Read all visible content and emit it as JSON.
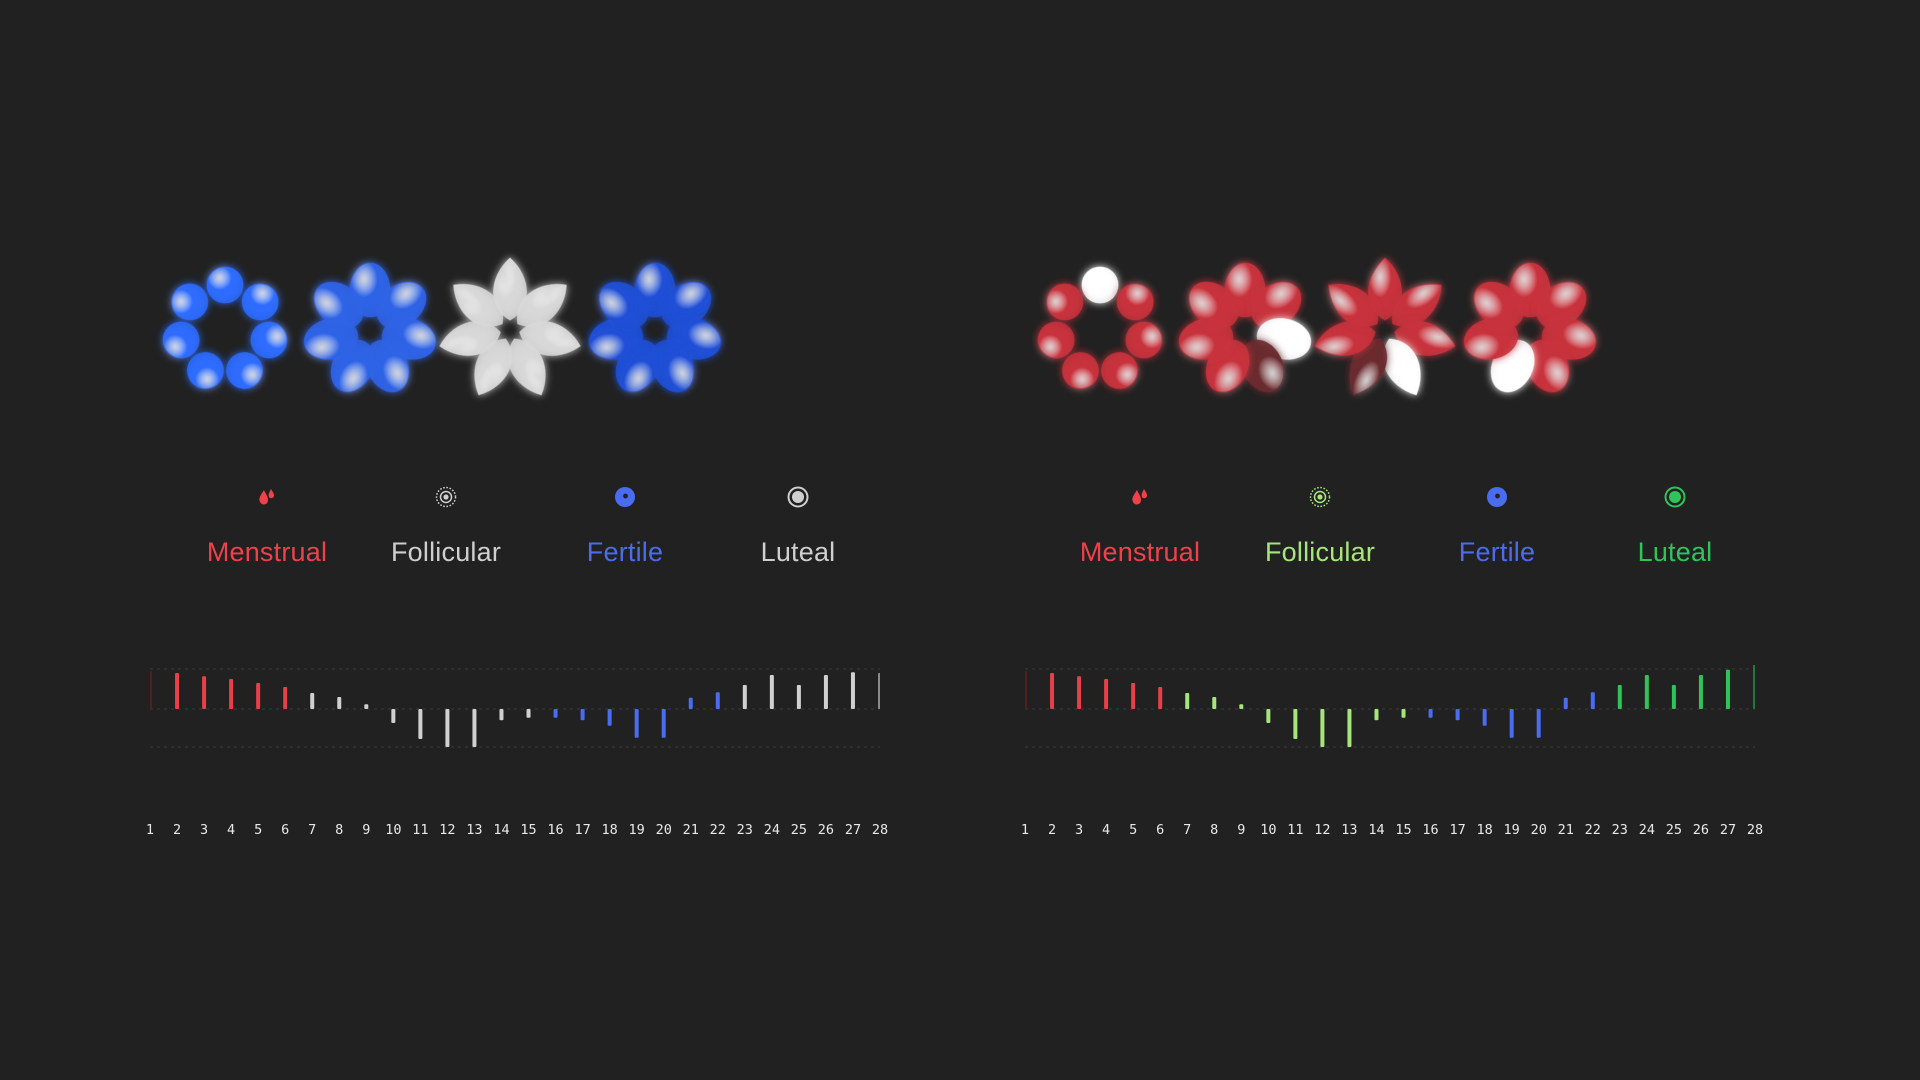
{
  "panels": [
    {
      "id": "left",
      "flowers": [
        {
          "phase": "menstrual",
          "shape": "round",
          "colors": [
            "#2d6cff",
            "#2d6cff",
            "#2d6cff",
            "#2d6cff",
            "#2d6cff",
            "#2d6cff",
            "#2d6cff"
          ]
        },
        {
          "phase": "follicular",
          "shape": "oval",
          "colors": [
            "#2f63e6",
            "#2f63e6",
            "#2f63e6",
            "#2f63e6",
            "#2f63e6",
            "#2f63e6",
            "#2f63e6"
          ]
        },
        {
          "phase": "fertile",
          "shape": "pointed",
          "colors": [
            "#d8d8d8",
            "#d8d8d8",
            "#d8d8d8",
            "#d8d8d8",
            "#d8d8d8",
            "#d8d8d8",
            "#d8d8d8"
          ]
        },
        {
          "phase": "luteal",
          "shape": "oval",
          "colors": [
            "#1f4fd6",
            "#1f4fd6",
            "#1f4fd6",
            "#1f4fd6",
            "#1f4fd6",
            "#1f4fd6",
            "#1f4fd6"
          ]
        }
      ],
      "phases": [
        {
          "label": "Menstrual",
          "color": "#f0414b",
          "icon": "blood-drop-icon"
        },
        {
          "label": "Follicular",
          "color": "#cfcfcf",
          "icon": "dotted-ring-icon"
        },
        {
          "label": "Fertile",
          "color": "#4a6cf0",
          "icon": "filled-dot-icon"
        },
        {
          "label": "Luteal",
          "color": "#cfcfcf",
          "icon": "ring-dot-icon"
        }
      ],
      "days": [
        {
          "day": "1",
          "value": 0.95,
          "color": "#5a1a1e"
        },
        {
          "day": "2",
          "value": 0.9,
          "color": "#e8404a"
        },
        {
          "day": "3",
          "value": 0.82,
          "color": "#e8404a"
        },
        {
          "day": "4",
          "value": 0.75,
          "color": "#e8404a"
        },
        {
          "day": "5",
          "value": 0.65,
          "color": "#e8404a"
        },
        {
          "day": "6",
          "value": 0.55,
          "color": "#e8404a"
        },
        {
          "day": "7",
          "value": 0.4,
          "color": "#d0d0d0"
        },
        {
          "day": "8",
          "value": 0.3,
          "color": "#d0d0d0"
        },
        {
          "day": "9",
          "value": 0.12,
          "color": "#d0d0d0"
        },
        {
          "day": "10",
          "value": -0.35,
          "color": "#d0d0d0"
        },
        {
          "day": "11",
          "value": -0.75,
          "color": "#d0d0d0"
        },
        {
          "day": "12",
          "value": -0.95,
          "color": "#d0d0d0"
        },
        {
          "day": "13",
          "value": -0.95,
          "color": "#d0d0d0"
        },
        {
          "day": "14",
          "value": -0.28,
          "color": "#d0d0d0"
        },
        {
          "day": "15",
          "value": -0.22,
          "color": "#d0d0d0"
        },
        {
          "day": "16",
          "value": -0.22,
          "color": "#4a6cf0"
        },
        {
          "day": "17",
          "value": -0.28,
          "color": "#4a6cf0"
        },
        {
          "day": "18",
          "value": -0.42,
          "color": "#4a6cf0"
        },
        {
          "day": "19",
          "value": -0.72,
          "color": "#4a6cf0"
        },
        {
          "day": "20",
          "value": -0.72,
          "color": "#4a6cf0"
        },
        {
          "day": "21",
          "value": 0.28,
          "color": "#4a6cf0"
        },
        {
          "day": "22",
          "value": 0.42,
          "color": "#4a6cf0"
        },
        {
          "day": "23",
          "value": 0.6,
          "color": "#d0d0d0"
        },
        {
          "day": "24",
          "value": 0.85,
          "color": "#d0d0d0"
        },
        {
          "day": "25",
          "value": 0.6,
          "color": "#d0d0d0"
        },
        {
          "day": "26",
          "value": 0.85,
          "color": "#d0d0d0"
        },
        {
          "day": "27",
          "value": 0.92,
          "color": "#d0d0d0"
        },
        {
          "day": "28",
          "value": 0.9,
          "color": "#8a8a8a"
        }
      ]
    },
    {
      "id": "right",
      "flowers": [
        {
          "phase": "menstrual",
          "shape": "round",
          "colors": [
            "#ffffff",
            "#c8323c",
            "#c8323c",
            "#c8323c",
            "#c8323c",
            "#c8323c",
            "#c8323c"
          ]
        },
        {
          "phase": "follicular",
          "shape": "oval",
          "colors": [
            "#c8323c",
            "#c8323c",
            "#ffffff",
            "#6a2a2e",
            "#c8323c",
            "#c8323c",
            "#c8323c"
          ]
        },
        {
          "phase": "fertile",
          "shape": "pointed",
          "colors": [
            "#c8323c",
            "#c8323c",
            "#c8323c",
            "#ffffff",
            "#6a2a2e",
            "#c8323c",
            "#c8323c"
          ]
        },
        {
          "phase": "luteal",
          "shape": "oval",
          "colors": [
            "#c8323c",
            "#c8323c",
            "#c8323c",
            "#c8323c",
            "#ffffff",
            "#c8323c",
            "#c8323c"
          ]
        }
      ],
      "phases": [
        {
          "label": "Menstrual",
          "color": "#f0414b",
          "icon": "blood-drop-icon"
        },
        {
          "label": "Follicular",
          "color": "#a6e57c",
          "icon": "dotted-ring-icon"
        },
        {
          "label": "Fertile",
          "color": "#4a6cf0",
          "icon": "filled-dot-icon"
        },
        {
          "label": "Luteal",
          "color": "#2ec45a",
          "icon": "ring-dot-icon"
        }
      ],
      "days": [
        {
          "day": "1",
          "value": 0.95,
          "color": "#5a1a1e"
        },
        {
          "day": "2",
          "value": 0.9,
          "color": "#e8404a"
        },
        {
          "day": "3",
          "value": 0.82,
          "color": "#e8404a"
        },
        {
          "day": "4",
          "value": 0.75,
          "color": "#e8404a"
        },
        {
          "day": "5",
          "value": 0.65,
          "color": "#e8404a"
        },
        {
          "day": "6",
          "value": 0.55,
          "color": "#e8404a"
        },
        {
          "day": "7",
          "value": 0.4,
          "color": "#a6e57c"
        },
        {
          "day": "8",
          "value": 0.3,
          "color": "#a6e57c"
        },
        {
          "day": "9",
          "value": 0.12,
          "color": "#a6e57c"
        },
        {
          "day": "10",
          "value": -0.35,
          "color": "#a6e57c"
        },
        {
          "day": "11",
          "value": -0.75,
          "color": "#a6e57c"
        },
        {
          "day": "12",
          "value": -0.95,
          "color": "#a6e57c"
        },
        {
          "day": "13",
          "value": -0.95,
          "color": "#a6e57c"
        },
        {
          "day": "14",
          "value": -0.28,
          "color": "#a6e57c"
        },
        {
          "day": "15",
          "value": -0.22,
          "color": "#a6e57c"
        },
        {
          "day": "16",
          "value": -0.22,
          "color": "#4a6cf0"
        },
        {
          "day": "17",
          "value": -0.28,
          "color": "#4a6cf0"
        },
        {
          "day": "18",
          "value": -0.42,
          "color": "#4a6cf0"
        },
        {
          "day": "19",
          "value": -0.72,
          "color": "#4a6cf0"
        },
        {
          "day": "20",
          "value": -0.72,
          "color": "#4a6cf0"
        },
        {
          "day": "21",
          "value": 0.28,
          "color": "#4a6cf0"
        },
        {
          "day": "22",
          "value": 0.42,
          "color": "#4a6cf0"
        },
        {
          "day": "23",
          "value": 0.6,
          "color": "#2ec45a"
        },
        {
          "day": "24",
          "value": 0.85,
          "color": "#2ec45a"
        },
        {
          "day": "25",
          "value": 0.6,
          "color": "#2ec45a"
        },
        {
          "day": "26",
          "value": 0.85,
          "color": "#2ec45a"
        },
        {
          "day": "27",
          "value": 0.98,
          "color": "#2ec45a"
        },
        {
          "day": "28",
          "value": 1.2,
          "color": "#1f7a3a"
        }
      ]
    }
  ]
}
